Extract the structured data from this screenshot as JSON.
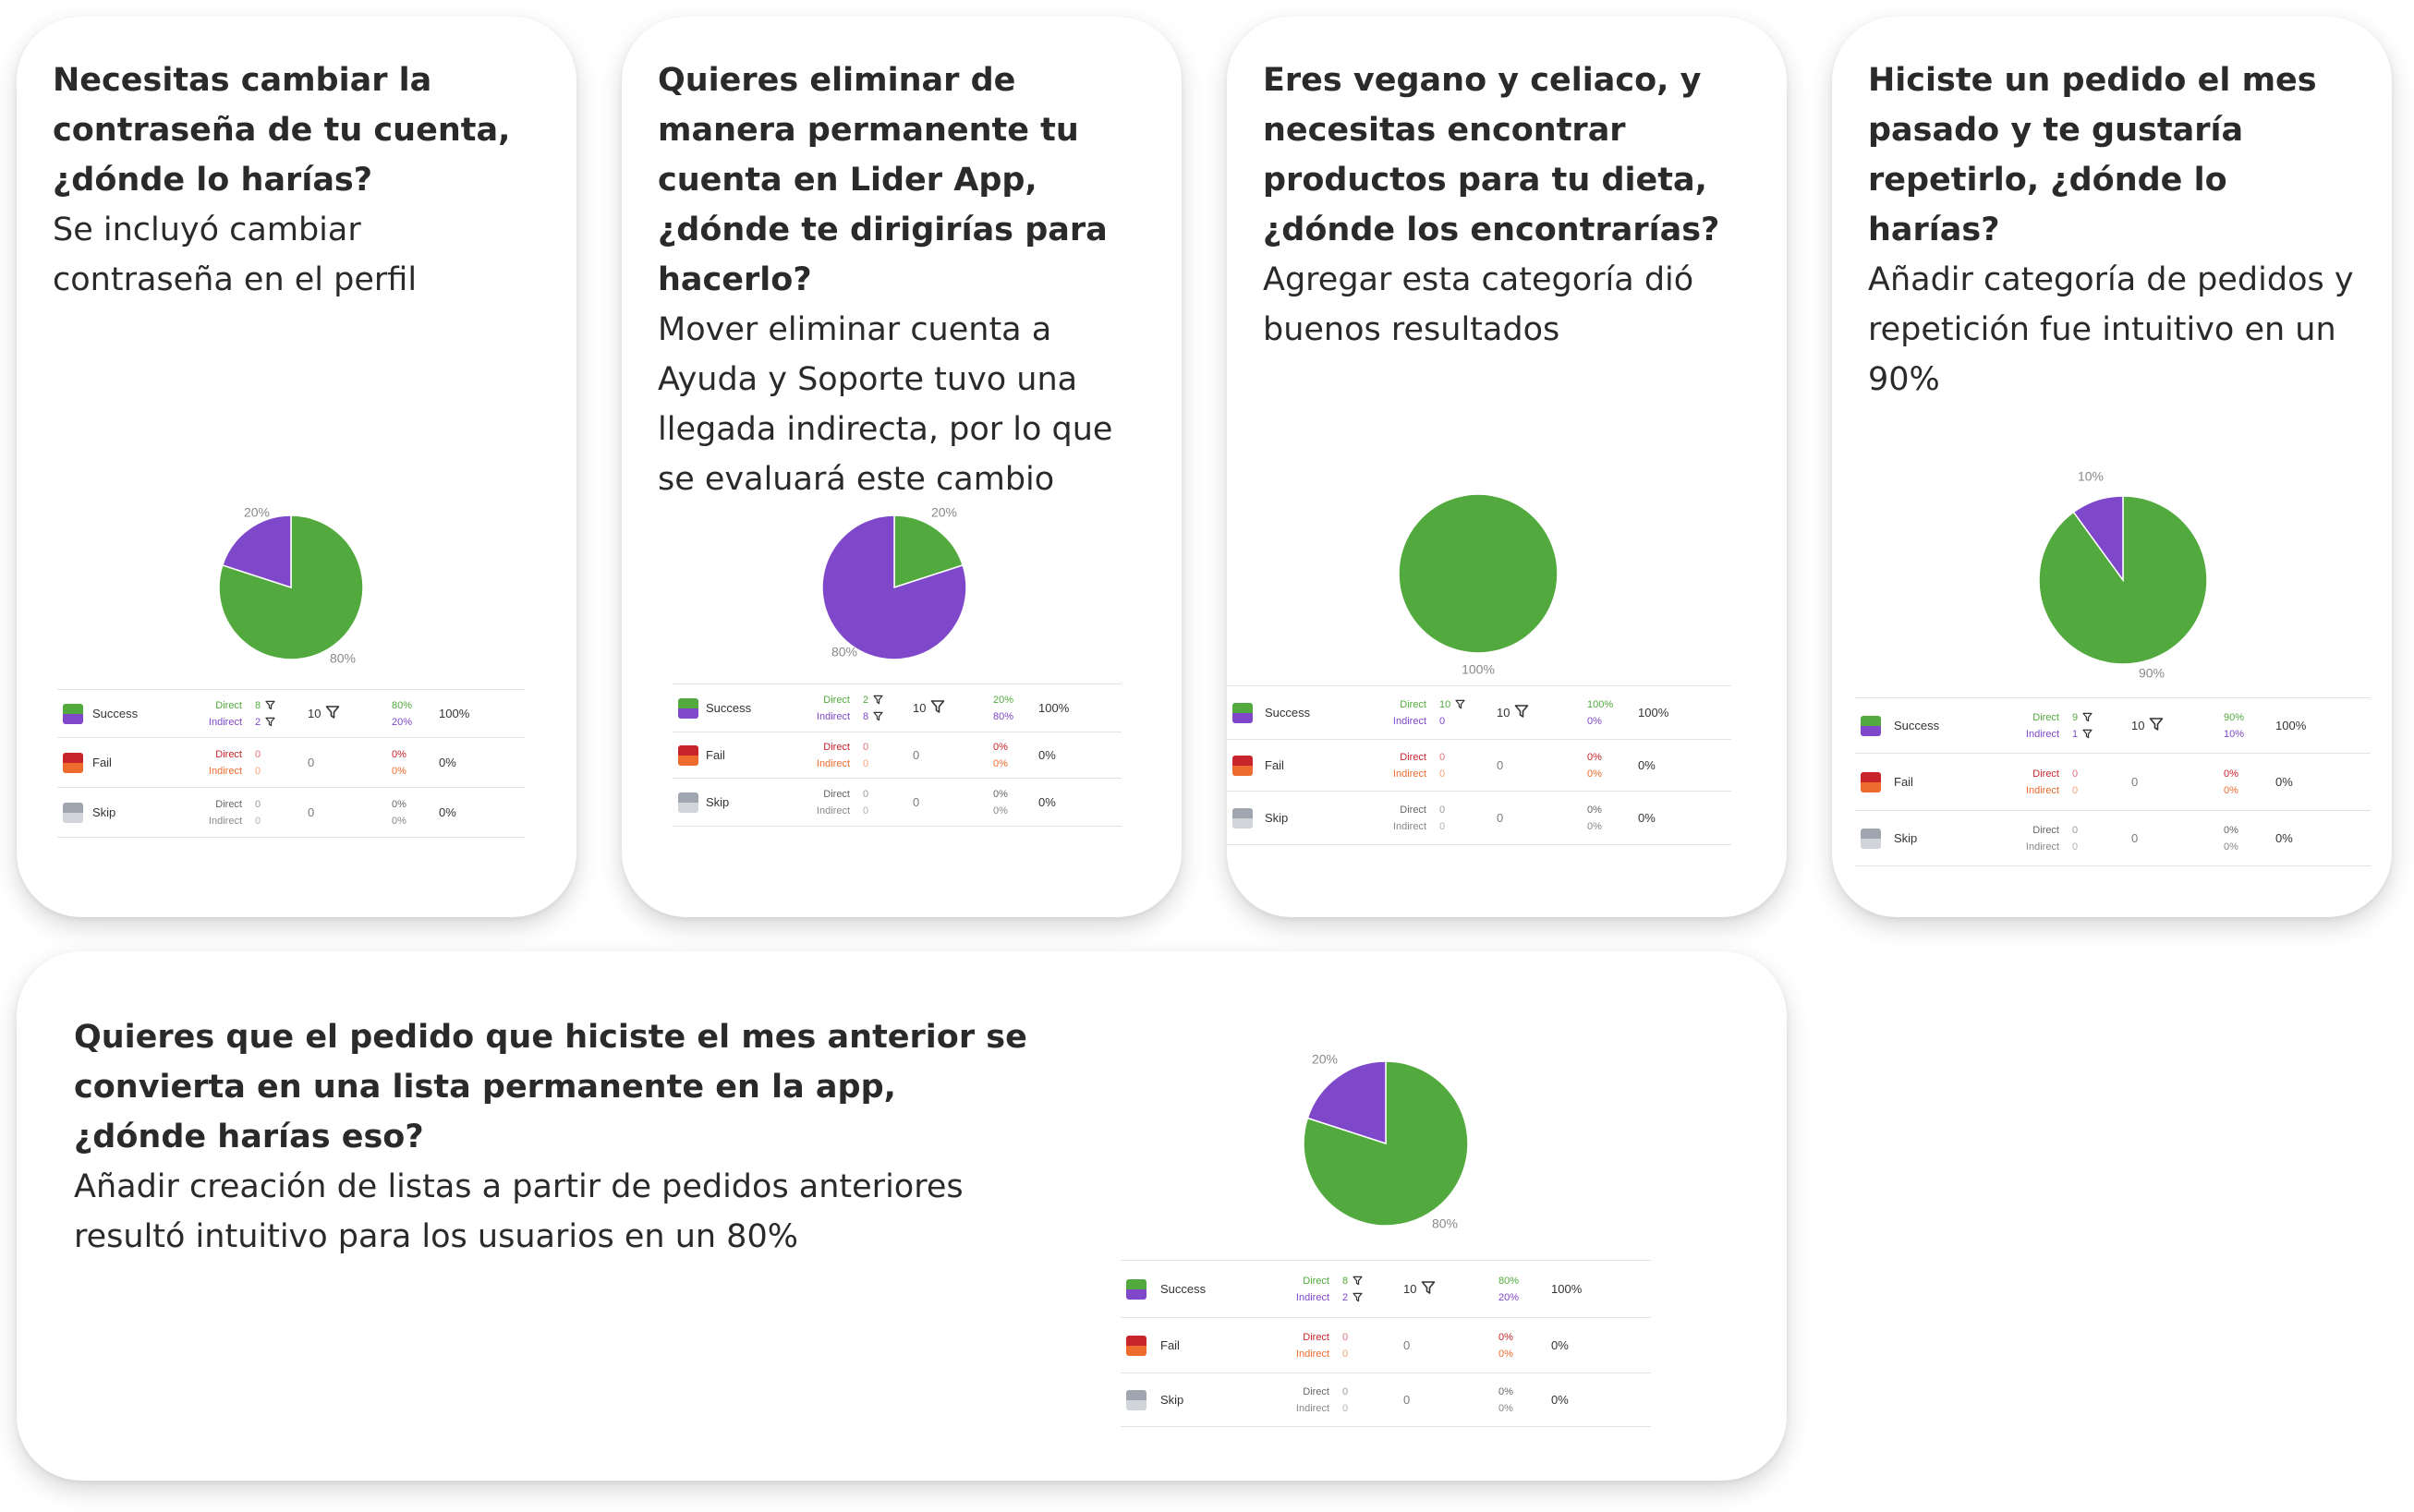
{
  "colors": {
    "success": "#52a93d",
    "indirect": "#7f47c9",
    "fail": "#c8242b",
    "fail_indirect": "#ec6b2d",
    "skip": "#a0a6b0",
    "skip_indirect": "#d1d4d9"
  },
  "labels": {
    "success": "Success",
    "fail": "Fail",
    "skip": "Skip",
    "direct": "Direct",
    "indirect": "Indirect"
  },
  "cards": [
    {
      "question": "Necesitas cambiar la contraseña de tu cuenta, ¿dónde lo harías?",
      "answer": "Se incluyó cambiar contraseña en el perfil",
      "chart_data": {
        "type": "pie",
        "slices": [
          {
            "name": "Success",
            "value": 80,
            "label": "80%"
          },
          {
            "name": "Indirect",
            "value": 20,
            "label": "20%"
          }
        ]
      },
      "table": {
        "success": {
          "direct": "8",
          "indirect": "2",
          "total": "10",
          "direct_pct": "80%",
          "indirect_pct": "20%",
          "all_pct": "100%"
        },
        "fail": {
          "direct": "0",
          "indirect": "0",
          "total": "0",
          "direct_pct": "0%",
          "indirect_pct": "0%",
          "all_pct": "0%"
        },
        "skip": {
          "direct": "0",
          "indirect": "0",
          "total": "0",
          "direct_pct": "0%",
          "indirect_pct": "0%",
          "all_pct": "0%"
        }
      }
    },
    {
      "question": "Quieres eliminar de manera permanente tu cuenta en Lider App, ¿dónde te dirigirías para hacerlo?",
      "answer": "Mover eliminar cuenta a Ayuda y Soporte tuvo una llegada indirecta, por lo que se evaluará este cambio",
      "chart_data": {
        "type": "pie",
        "slices": [
          {
            "name": "Success",
            "value": 20,
            "label": "20%"
          },
          {
            "name": "Indirect",
            "value": 80,
            "label": "80%"
          }
        ]
      },
      "table": {
        "success": {
          "direct": "2",
          "indirect": "8",
          "total": "10",
          "direct_pct": "20%",
          "indirect_pct": "80%",
          "all_pct": "100%"
        },
        "fail": {
          "direct": "0",
          "indirect": "0",
          "total": "0",
          "direct_pct": "0%",
          "indirect_pct": "0%",
          "all_pct": "0%"
        },
        "skip": {
          "direct": "0",
          "indirect": "0",
          "total": "0",
          "direct_pct": "0%",
          "indirect_pct": "0%",
          "all_pct": "0%"
        }
      }
    },
    {
      "question": "Eres vegano y celiaco, y necesitas encontrar productos para tu dieta, ¿dónde los encontrarías?",
      "answer": "Agregar esta categoría dió buenos resultados",
      "chart_data": {
        "type": "pie",
        "slices": [
          {
            "name": "Success",
            "value": 100,
            "label": "100%"
          }
        ]
      },
      "table": {
        "success": {
          "direct": "10",
          "indirect": "0",
          "total": "10",
          "direct_pct": "100%",
          "indirect_pct": "0%",
          "all_pct": "100%"
        },
        "fail": {
          "direct": "0",
          "indirect": "0",
          "total": "0",
          "direct_pct": "0%",
          "indirect_pct": "0%",
          "all_pct": "0%"
        },
        "skip": {
          "direct": "0",
          "indirect": "0",
          "total": "0",
          "direct_pct": "0%",
          "indirect_pct": "0%",
          "all_pct": "0%"
        }
      }
    },
    {
      "question": "Hiciste un pedido el mes pasado y te gustaría repetirlo, ¿dónde lo harías?",
      "answer": "Añadir categoría de pedidos y repetición fue intuitivo en un 90%",
      "chart_data": {
        "type": "pie",
        "slices": [
          {
            "name": "Success",
            "value": 90,
            "label": "90%"
          },
          {
            "name": "Indirect",
            "value": 10,
            "label": "10%"
          }
        ]
      },
      "table": {
        "success": {
          "direct": "9",
          "indirect": "1",
          "total": "10",
          "direct_pct": "90%",
          "indirect_pct": "10%",
          "all_pct": "100%"
        },
        "fail": {
          "direct": "0",
          "indirect": "0",
          "total": "0",
          "direct_pct": "0%",
          "indirect_pct": "0%",
          "all_pct": "0%"
        },
        "skip": {
          "direct": "0",
          "indirect": "0",
          "total": "0",
          "direct_pct": "0%",
          "indirect_pct": "0%",
          "all_pct": "0%"
        }
      }
    },
    {
      "question": "Quieres que el pedido que hiciste el mes anterior se convierta en una lista permanente en la app, ¿dónde harías eso?",
      "answer": "Añadir creación de listas a partir de pedidos anteriores resultó intuitivo para los usuarios en un 80%",
      "chart_data": {
        "type": "pie",
        "slices": [
          {
            "name": "Success",
            "value": 80,
            "label": "80%"
          },
          {
            "name": "Indirect",
            "value": 20,
            "label": "20%"
          }
        ]
      },
      "table": {
        "success": {
          "direct": "8",
          "indirect": "2",
          "total": "10",
          "direct_pct": "80%",
          "indirect_pct": "20%",
          "all_pct": "100%"
        },
        "fail": {
          "direct": "0",
          "indirect": "0",
          "total": "0",
          "direct_pct": "0%",
          "indirect_pct": "0%",
          "all_pct": "0%"
        },
        "skip": {
          "direct": "0",
          "indirect": "0",
          "total": "0",
          "direct_pct": "0%",
          "indirect_pct": "0%",
          "all_pct": "0%"
        }
      }
    }
  ]
}
